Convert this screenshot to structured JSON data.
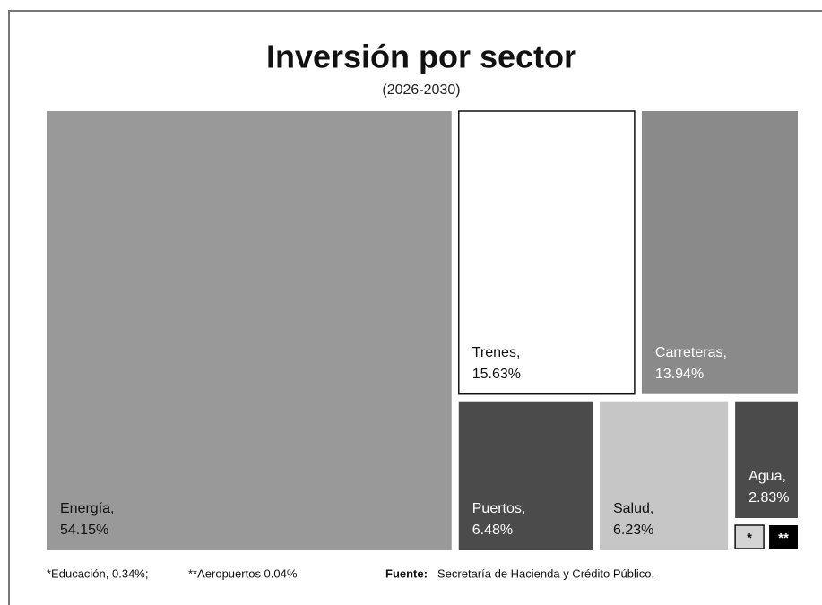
{
  "chart_data": {
    "type": "treemap",
    "title": "Inversión por sector",
    "subtitle": "(2026-2030)",
    "categories": [
      "Energía,",
      "Trenes,",
      "Carreteras,",
      "Puertos,",
      "Salud,",
      "Agua,",
      "*",
      "**"
    ],
    "values": [
      54.15,
      15.63,
      13.94,
      6.48,
      6.23,
      2.83,
      0.34,
      0.04
    ],
    "value_labels": [
      "54.15%",
      "15.63%",
      "13.94%",
      "6.48%",
      "6.23%",
      "2.83%",
      null,
      null
    ],
    "colors": [
      "#999999",
      "#ffffff",
      "#8a8a8a",
      "#4b4b4b",
      "#c6c6c6",
      "#4b4b4b",
      "#d4d4d4",
      "#000000"
    ],
    "label_colors": [
      "#111111",
      "#111111",
      "#ffffff",
      "#ffffff",
      "#111111",
      "#ffffff",
      "#111111",
      "#ffffff"
    ],
    "footnotes": [
      "*Educación, 0.34%;",
      "**Aeropuertos 0.04%"
    ],
    "source_label": "Fuente:",
    "source": "Secretaría de Hacienda y Crédito Público."
  }
}
